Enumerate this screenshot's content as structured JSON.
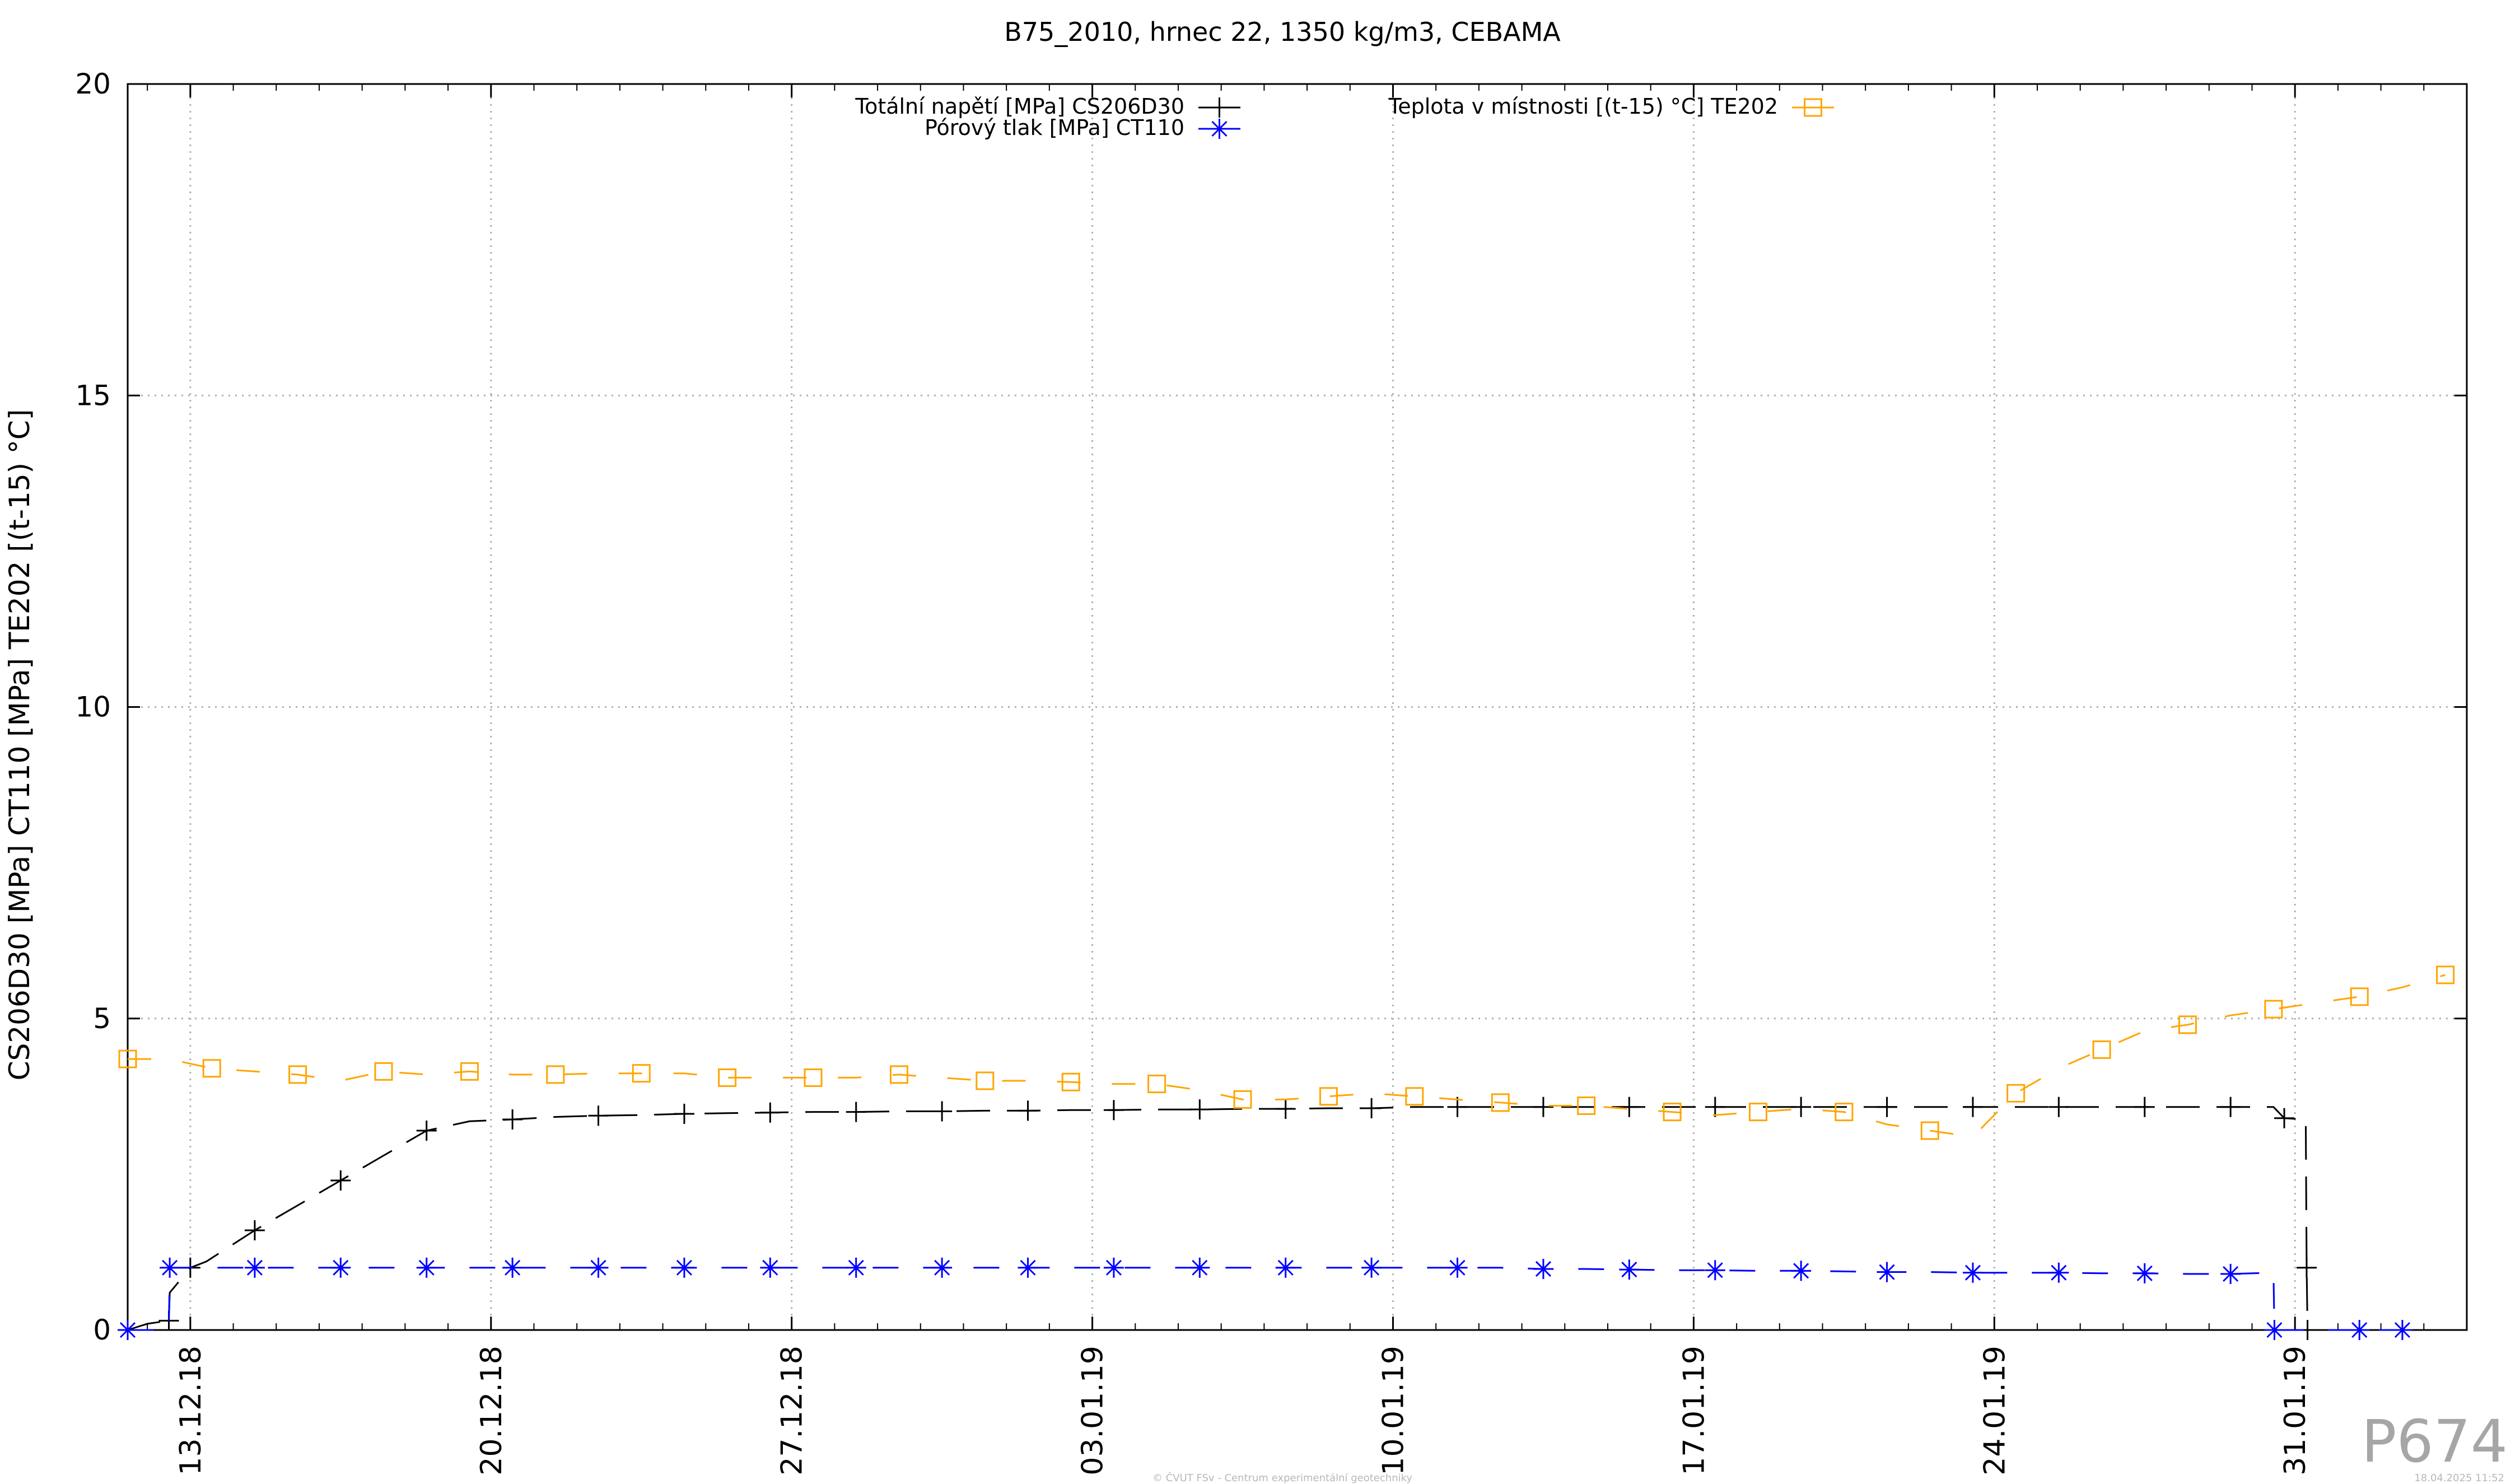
{
  "chart_data": {
    "type": "line",
    "title": "B75_2010, hrnec 22, 1350 kg/m3, CEBAMA",
    "ylabel": "CS206D30 [MPa] CT110 [MPa] TE202 [(t-15) °C]",
    "xlabel": "",
    "ylim": [
      0,
      20
    ],
    "yticks": [
      0,
      5,
      10,
      15,
      20
    ],
    "xlim": [
      "11.12.18 13:00",
      "04.02.19 00:00"
    ],
    "xticks": [
      "13.12.18",
      "20.12.18",
      "27.12.18",
      "03.01.19",
      "10.01.19",
      "17.01.19",
      "24.01.19",
      "31.01.19"
    ],
    "grid": true,
    "legend_position": "top",
    "series": [
      {
        "name": "Totální napětí [MPa] CS206D30",
        "color": "#000000",
        "marker": "plus",
        "x": [
          "11.12.18 13:00",
          "12.12.18 00:00",
          "12.12.18 12:00",
          "12.12.18 12:30",
          "13.12.18 00:00",
          "13.12.18 09:00",
          "14.12.18 12:00",
          "15.12.18 12:00",
          "16.12.18 12:00",
          "17.12.18 12:00",
          "18.12.18 12:00",
          "19.12.18 12:00",
          "20.12.18 12:00",
          "21.12.18 12:00",
          "22.12.18 12:00",
          "23.12.18 12:00",
          "24.12.18 12:00",
          "25.12.18 12:00",
          "26.12.18 12:00",
          "27.12.18 12:00",
          "28.12.18 12:00",
          "29.12.18 12:00",
          "30.12.18 12:00",
          "31.12.18 12:00",
          "01.01.19 12:00",
          "02.01.19 12:00",
          "03.01.19 12:00",
          "04.01.19 12:00",
          "05.01.19 12:00",
          "06.01.19 12:00",
          "07.01.19 12:00",
          "08.01.19 12:00",
          "09.01.19 12:00",
          "10.01.19 12:00",
          "11.01.19 12:00",
          "12.01.19 12:00",
          "13.01.19 12:00",
          "14.01.19 12:00",
          "15.01.19 12:00",
          "16.01.19 12:00",
          "17.01.19 12:00",
          "18.01.19 12:00",
          "19.01.19 12:00",
          "20.01.19 12:00",
          "21.01.19 12:00",
          "22.01.19 12:00",
          "23.01.19 12:00",
          "24.01.19 12:00",
          "25.01.19 12:00",
          "26.01.19 12:00",
          "27.01.19 12:00",
          "28.01.19 12:00",
          "29.01.19 12:00",
          "30.01.19 12:00",
          "30.01.19 18:00",
          "31.01.19 06:00",
          "31.01.19 06:30",
          "31.01.19 07:00"
        ],
        "y": [
          0,
          0.1,
          0.15,
          0.6,
          1.0,
          1.1,
          1.6,
          2.0,
          2.4,
          2.8,
          3.2,
          3.35,
          3.38,
          3.42,
          3.44,
          3.45,
          3.47,
          3.48,
          3.49,
          3.5,
          3.5,
          3.51,
          3.51,
          3.52,
          3.52,
          3.53,
          3.53,
          3.54,
          3.54,
          3.55,
          3.55,
          3.56,
          3.56,
          3.58,
          3.58,
          3.58,
          3.58,
          3.58,
          3.58,
          3.58,
          3.58,
          3.58,
          3.58,
          3.58,
          3.58,
          3.58,
          3.58,
          3.58,
          3.58,
          3.58,
          3.58,
          3.58,
          3.58,
          3.58,
          3.4,
          3.38,
          1.0,
          0
        ]
      },
      {
        "name": "Pórový tlak [MPa] CT110",
        "color": "#0000ff",
        "marker": "star",
        "x": [
          "11.12.18 13:00",
          "12.12.18 12:00",
          "12.12.18 12:30",
          "13.12.18 12:00",
          "14.12.18 12:00",
          "15.12.18 12:00",
          "16.12.18 12:00",
          "17.12.18 12:00",
          "18.12.18 12:00",
          "19.12.18 12:00",
          "20.12.18 12:00",
          "21.12.18 12:00",
          "22.12.18 12:00",
          "23.12.18 12:00",
          "24.12.18 12:00",
          "25.12.18 12:00",
          "26.12.18 12:00",
          "27.12.18 12:00",
          "28.12.18 12:00",
          "29.12.18 12:00",
          "30.12.18 12:00",
          "31.12.18 12:00",
          "01.01.19 12:00",
          "02.01.19 12:00",
          "03.01.19 12:00",
          "04.01.19 12:00",
          "05.01.19 12:00",
          "06.01.19 12:00",
          "07.01.19 12:00",
          "08.01.19 12:00",
          "09.01.19 12:00",
          "10.01.19 12:00",
          "11.01.19 12:00",
          "12.01.19 12:00",
          "13.01.19 12:00",
          "14.01.19 12:00",
          "15.01.19 12:00",
          "16.01.19 12:00",
          "17.01.19 12:00",
          "18.01.19 12:00",
          "19.01.19 12:00",
          "20.01.19 12:00",
          "21.01.19 12:00",
          "22.01.19 12:00",
          "23.01.19 12:00",
          "24.01.19 12:00",
          "25.01.19 12:00",
          "26.01.19 12:00",
          "27.01.19 12:00",
          "28.01.19 12:00",
          "29.01.19 12:00",
          "30.01.19 12:00",
          "30.01.19 12:30",
          "31.01.19 12:00",
          "01.02.19 12:00",
          "02.02.19 12:00"
        ],
        "y": [
          0,
          0,
          1.0,
          1.0,
          1.0,
          1.0,
          1.0,
          1.0,
          1.0,
          1.0,
          1.0,
          1.0,
          1.0,
          1.0,
          1.0,
          1.0,
          1.0,
          1.0,
          1.0,
          1.0,
          1.0,
          1.0,
          1.0,
          1.0,
          1.0,
          1.0,
          1.0,
          1.0,
          1.0,
          1.0,
          1.0,
          1.0,
          1.0,
          1.0,
          0.98,
          0.98,
          0.97,
          0.96,
          0.96,
          0.95,
          0.95,
          0.94,
          0.93,
          0.93,
          0.92,
          0.92,
          0.92,
          0.91,
          0.91,
          0.9,
          0.9,
          0.92,
          0,
          0,
          0,
          0
        ]
      },
      {
        "name": "Teplota v místnosti [(t-15) °C] TE202",
        "color": "#ffa500",
        "marker": "square",
        "x": [
          "11.12.18 13:00",
          "12.12.18 12:00",
          "13.12.18 12:00",
          "14.12.18 12:00",
          "15.12.18 12:00",
          "16.12.18 12:00",
          "17.12.18 12:00",
          "18.12.18 12:00",
          "19.12.18 12:00",
          "20.12.18 12:00",
          "21.12.18 12:00",
          "22.12.18 12:00",
          "23.12.18 12:00",
          "24.12.18 12:00",
          "25.12.18 12:00",
          "26.12.18 12:00",
          "27.12.18 12:00",
          "28.12.18 12:00",
          "29.12.18 12:00",
          "30.12.18 12:00",
          "31.12.18 12:00",
          "01.01.19 12:00",
          "02.01.19 12:00",
          "03.01.19 12:00",
          "04.01.19 12:00",
          "05.01.19 12:00",
          "06.01.19 12:00",
          "07.01.19 12:00",
          "08.01.19 12:00",
          "09.01.19 12:00",
          "10.01.19 12:00",
          "11.01.19 12:00",
          "12.01.19 12:00",
          "13.01.19 12:00",
          "14.01.19 12:00",
          "15.01.19 12:00",
          "16.01.19 12:00",
          "17.01.19 12:00",
          "18.01.19 12:00",
          "19.01.19 12:00",
          "20.01.19 12:00",
          "21.01.19 12:00",
          "22.01.19 12:00",
          "23.01.19 12:00",
          "24.01.19 12:00",
          "25.01.19 12:00",
          "26.01.19 12:00",
          "27.01.19 12:00",
          "28.01.19 12:00",
          "29.01.19 12:00",
          "30.01.19 12:00",
          "31.01.19 12:00",
          "01.02.19 12:00",
          "02.02.19 12:00",
          "03.02.19 12:00"
        ],
        "y": [
          4.35,
          4.35,
          4.2,
          4.15,
          4.1,
          4.0,
          4.15,
          4.1,
          4.15,
          4.1,
          4.1,
          4.12,
          4.12,
          4.12,
          4.05,
          4.05,
          4.05,
          4.05,
          4.1,
          4.05,
          4.0,
          4.0,
          3.98,
          3.95,
          3.95,
          3.85,
          3.7,
          3.7,
          3.75,
          3.8,
          3.75,
          3.7,
          3.65,
          3.6,
          3.6,
          3.55,
          3.5,
          3.45,
          3.5,
          3.55,
          3.5,
          3.3,
          3.2,
          3.1,
          3.8,
          4.2,
          4.5,
          4.8,
          4.9,
          5.05,
          5.15,
          5.25,
          5.35,
          5.5,
          5.7
        ]
      }
    ],
    "footer_left": "© ČVUT FSv - Centrum experimentální geotechniky",
    "footer_right": "18.04.2025 11:52",
    "watermark": "P674"
  }
}
